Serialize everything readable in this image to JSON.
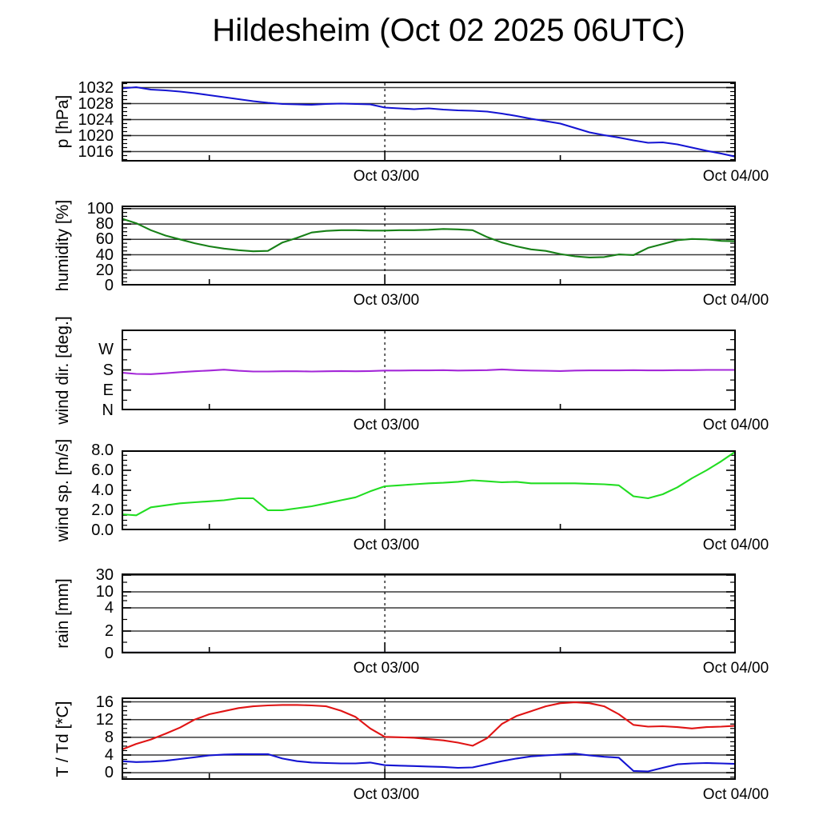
{
  "title": "Hildesheim (Oct 02 2025 06UTC)",
  "xaxis": {
    "major_labels": [
      "Oct 03/00",
      "Oct 04/00"
    ],
    "hours_span": 42,
    "major_hours": [
      18,
      42
    ],
    "minor_hours": [
      6,
      30
    ],
    "dashed_guide_hour": 18
  },
  "style": {
    "grid_color": "#3a3a3a",
    "frame_color": "#000000",
    "guide_color": "#000000"
  },
  "chart_data": [
    {
      "type": "line",
      "ylabel": "p [hPa]",
      "ymin": 1013.5,
      "ymax": 1033.5,
      "minor_step": 1,
      "yticks": [
        {
          "v": 1016,
          "label": "1016",
          "grid": true
        },
        {
          "v": 1020,
          "label": "1020",
          "grid": true
        },
        {
          "v": 1024,
          "label": "1024",
          "grid": true
        },
        {
          "v": 1028,
          "label": "1028",
          "grid": true
        },
        {
          "v": 1032,
          "label": "1032",
          "grid": true
        }
      ],
      "series": [
        {
          "name": "pressure",
          "color": "#1414d2",
          "x_start_hour": 0,
          "x_step_hours": 1,
          "values": [
            1031.8,
            1032.1,
            1031.5,
            1031.3,
            1031.0,
            1030.6,
            1030.1,
            1029.6,
            1029.1,
            1028.6,
            1028.2,
            1027.9,
            1027.8,
            1027.7,
            1027.9,
            1028.0,
            1027.9,
            1027.8,
            1027.0,
            1026.8,
            1026.6,
            1026.8,
            1026.5,
            1026.3,
            1026.2,
            1026.0,
            1025.5,
            1024.9,
            1024.2,
            1023.6,
            1023.0,
            1021.9,
            1020.8,
            1020.1,
            1019.5,
            1018.8,
            1018.2,
            1018.3,
            1017.8,
            1017.0,
            1016.2,
            1015.5,
            1014.7
          ]
        }
      ]
    },
    {
      "type": "line",
      "ylabel": "humidity [%]",
      "ymin": 0,
      "ymax": 104,
      "minor_step": 5,
      "yticks": [
        {
          "v": 0,
          "label": "0",
          "grid": false
        },
        {
          "v": 20,
          "label": "20",
          "grid": true
        },
        {
          "v": 40,
          "label": "40",
          "grid": true
        },
        {
          "v": 60,
          "label": "60",
          "grid": true
        },
        {
          "v": 80,
          "label": "80",
          "grid": true
        },
        {
          "v": 100,
          "label": "100",
          "grid": true
        }
      ],
      "series": [
        {
          "name": "humidity",
          "color": "#178017",
          "x_start_hour": 0,
          "x_step_hours": 1,
          "values": [
            87,
            81,
            72,
            65,
            60,
            55,
            51,
            48,
            46,
            44.5,
            45,
            56,
            62,
            69,
            71,
            72,
            72,
            71.5,
            71.5,
            72,
            72,
            72.5,
            73.5,
            73,
            72,
            63,
            56,
            51,
            47,
            45,
            41,
            38,
            36.5,
            37,
            40.5,
            39.5,
            49,
            54,
            59,
            60.5,
            60,
            58,
            57.5
          ]
        }
      ]
    },
    {
      "type": "line",
      "ylabel": "wind dir. [deg.]",
      "ymin": 0,
      "ymax": 360,
      "minor_step": 45,
      "yticks": [
        {
          "v": 0,
          "label": "N",
          "grid": false
        },
        {
          "v": 90,
          "label": "E",
          "grid": false
        },
        {
          "v": 180,
          "label": "S",
          "grid": false
        },
        {
          "v": 270,
          "label": "W",
          "grid": false
        }
      ],
      "series": [
        {
          "name": "wind-direction",
          "color": "#a428d8",
          "x_start_hour": 0,
          "x_step_hours": 1,
          "values": [
            168,
            162,
            161,
            165,
            170,
            174,
            177,
            181,
            176,
            173,
            173,
            174,
            174,
            173,
            174,
            175,
            174,
            175,
            177,
            177,
            178,
            178,
            179,
            177,
            178,
            179,
            182,
            179,
            177,
            176,
            175,
            177,
            178,
            178,
            178,
            179,
            178,
            178,
            179,
            179,
            180,
            180,
            180
          ]
        }
      ]
    },
    {
      "type": "line",
      "ylabel": "wind sp. [m/s]",
      "ymin": 0,
      "ymax": 8,
      "minor_step": 0.5,
      "yticks": [
        {
          "v": 0,
          "label": "0.0",
          "grid": false
        },
        {
          "v": 2,
          "label": "2.0",
          "grid": false
        },
        {
          "v": 4,
          "label": "4.0",
          "grid": false
        },
        {
          "v": 6,
          "label": "6.0",
          "grid": false
        },
        {
          "v": 8,
          "label": "8.0",
          "grid": false
        }
      ],
      "series": [
        {
          "name": "wind-speed",
          "color": "#22dd22",
          "x_start_hour": 0,
          "x_step_hours": 1,
          "values": [
            1.6,
            1.5,
            2.3,
            2.5,
            2.7,
            2.8,
            2.9,
            3.0,
            3.2,
            3.2,
            2.0,
            2.0,
            2.2,
            2.4,
            2.7,
            3.0,
            3.3,
            3.9,
            4.4,
            4.5,
            4.6,
            4.7,
            4.75,
            4.85,
            5.0,
            4.9,
            4.8,
            4.85,
            4.7,
            4.7,
            4.7,
            4.7,
            4.65,
            4.6,
            4.5,
            3.4,
            3.2,
            3.6,
            4.3,
            5.2,
            6.0,
            6.9,
            7.9
          ]
        }
      ]
    },
    {
      "type": "line",
      "ylabel": "rain [mm]",
      "scale_values": [
        0,
        2,
        4,
        10,
        30
      ],
      "scale_fracs": [
        0,
        0.28,
        0.57,
        0.77,
        0.98
      ],
      "minor_fracs": [
        0.14,
        0.425,
        0.66,
        0.72,
        0.89
      ],
      "yticks": [
        {
          "v": 0,
          "label": "0",
          "grid": false
        },
        {
          "v": 2,
          "label": "2",
          "grid": true
        },
        {
          "v": 4,
          "label": "4",
          "grid": true
        },
        {
          "v": 10,
          "label": "10",
          "grid": true
        },
        {
          "v": 30,
          "label": "30",
          "grid": true
        }
      ],
      "series": [
        {
          "name": "rain",
          "color": "#101040",
          "x_start_hour": 0,
          "x_step_hours": 1,
          "values": [
            0,
            0,
            0,
            0,
            0,
            0,
            0,
            0,
            0,
            0,
            0,
            0,
            0,
            0,
            0,
            0,
            0,
            0,
            0,
            0,
            0,
            0,
            0,
            0,
            0,
            0,
            0,
            0,
            0,
            0,
            0,
            0,
            0,
            0,
            0,
            0,
            0,
            0,
            0,
            0,
            0,
            0,
            0
          ]
        }
      ]
    },
    {
      "type": "line",
      "ylabel": "T / Td [*C]",
      "ymin": -1.6,
      "ymax": 17,
      "minor_step": 1,
      "yticks": [
        {
          "v": 0,
          "label": "0",
          "grid": true
        },
        {
          "v": 4,
          "label": "4",
          "grid": true
        },
        {
          "v": 8,
          "label": "8",
          "grid": true
        },
        {
          "v": 12,
          "label": "12",
          "grid": true
        },
        {
          "v": 16,
          "label": "16",
          "grid": true
        }
      ],
      "series": [
        {
          "name": "temperature",
          "color": "#e01414",
          "x_start_hour": 0,
          "x_step_hours": 1,
          "values": [
            5.2,
            6.5,
            7.5,
            8.8,
            10.2,
            12.0,
            13.2,
            13.9,
            14.6,
            15.0,
            15.2,
            15.3,
            15.3,
            15.2,
            15.0,
            14.0,
            12.6,
            10.0,
            8.1,
            8.0,
            7.9,
            7.6,
            7.3,
            6.8,
            6.1,
            7.8,
            11.0,
            12.8,
            13.9,
            15.0,
            15.7,
            15.9,
            15.7,
            15.0,
            13.2,
            10.8,
            10.4,
            10.5,
            10.3,
            10.0,
            10.3,
            10.4,
            10.6
          ]
        },
        {
          "name": "dewpoint",
          "color": "#1414d2",
          "x_start_hour": 0,
          "x_step_hours": 1,
          "values": [
            2.6,
            2.4,
            2.5,
            2.7,
            3.1,
            3.5,
            3.9,
            4.1,
            4.2,
            4.2,
            4.2,
            3.2,
            2.6,
            2.3,
            2.2,
            2.1,
            2.1,
            2.3,
            1.7,
            1.6,
            1.5,
            1.4,
            1.3,
            1.1,
            1.2,
            1.9,
            2.6,
            3.2,
            3.7,
            3.9,
            4.1,
            4.3,
            3.9,
            3.6,
            3.4,
            0.4,
            0.3,
            1.1,
            1.9,
            2.1,
            2.2,
            2.1,
            2.0
          ]
        }
      ]
    }
  ]
}
